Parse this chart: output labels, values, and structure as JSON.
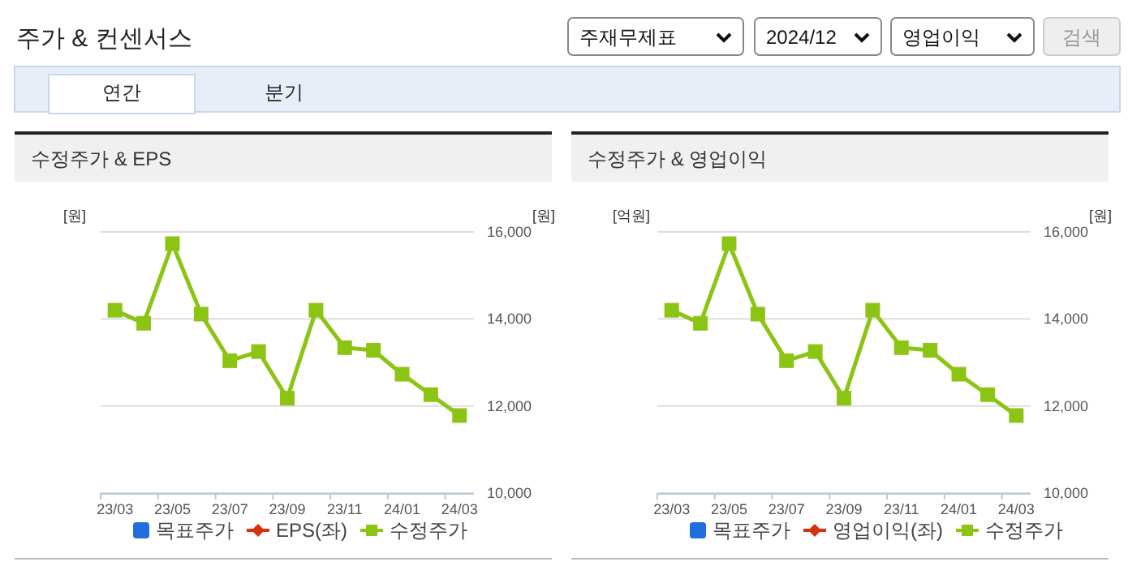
{
  "chart_data": [
    {
      "type": "other",
      "title": "주가 & 컨센서스",
      "annotations": [
        "주재무제표",
        "2024/12",
        "영업이익",
        "검색",
        "연간",
        "분기"
      ]
    },
    {
      "type": "line",
      "title": "수정주가 & EPS",
      "ylabel": "[원]",
      "y2label": "[원]",
      "categories": [
        "23/03",
        null,
        "23/05",
        null,
        "23/07",
        null,
        "23/09",
        null,
        "23/11",
        null,
        "24/01",
        null,
        "24/03"
      ],
      "y2lim": [
        10000,
        16000
      ],
      "y2ticks": [
        {
          "value": 10000,
          "label": "10,000"
        },
        {
          "value": 12000,
          "label": "12,000"
        },
        {
          "value": 14000,
          "label": "14,000"
        },
        {
          "value": 16000,
          "label": "16,000"
        }
      ],
      "grid": "y",
      "legend": "bottom",
      "series": [
        {
          "name": "목표주가",
          "type": "bar",
          "color": "#1f6fdf",
          "values": [
            null,
            null,
            null,
            null,
            null,
            null,
            null,
            null,
            null,
            null,
            null,
            null,
            null
          ]
        },
        {
          "name": "EPS(좌)",
          "type": "line",
          "marker": "diamond",
          "color": "#d9300e",
          "values": [
            null,
            null,
            null,
            null,
            null,
            null,
            null,
            null,
            null,
            null,
            null,
            null,
            null
          ]
        },
        {
          "name": "수정주가",
          "type": "line",
          "marker": "square",
          "axis": "y2",
          "color": "#8cc414",
          "values": [
            14200,
            13900,
            15730,
            14110,
            13040,
            13250,
            12180,
            14200,
            13340,
            13280,
            12730,
            12260,
            11780
          ]
        }
      ]
    },
    {
      "type": "line",
      "title": "수정주가 & 영업이익",
      "ylabel": "[억원]",
      "y2label": "[원]",
      "categories": [
        "23/03",
        null,
        "23/05",
        null,
        "23/07",
        null,
        "23/09",
        null,
        "23/11",
        null,
        "24/01",
        null,
        "24/03"
      ],
      "y2lim": [
        10000,
        16000
      ],
      "y2ticks": [
        {
          "value": 10000,
          "label": "10,000"
        },
        {
          "value": 12000,
          "label": "12,000"
        },
        {
          "value": 14000,
          "label": "14,000"
        },
        {
          "value": 16000,
          "label": "16,000"
        }
      ],
      "grid": "y",
      "legend": "bottom",
      "series": [
        {
          "name": "목표주가",
          "type": "bar",
          "color": "#1f6fdf",
          "values": [
            null,
            null,
            null,
            null,
            null,
            null,
            null,
            null,
            null,
            null,
            null,
            null,
            null
          ]
        },
        {
          "name": "영업이익(좌)",
          "type": "line",
          "marker": "diamond",
          "color": "#d9300e",
          "values": [
            null,
            null,
            null,
            null,
            null,
            null,
            null,
            null,
            null,
            null,
            null,
            null,
            null
          ]
        },
        {
          "name": "수정주가",
          "type": "line",
          "marker": "square",
          "axis": "y2",
          "color": "#8cc414",
          "values": [
            14200,
            13900,
            15730,
            14110,
            13040,
            13250,
            12180,
            14200,
            13340,
            13280,
            12730,
            12260,
            11780
          ]
        }
      ]
    }
  ]
}
